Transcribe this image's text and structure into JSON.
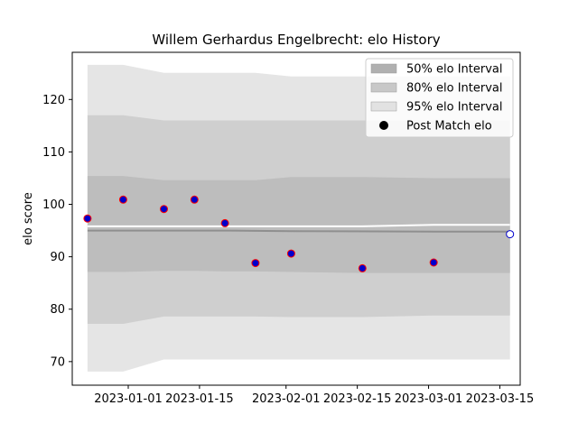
{
  "chart_data": {
    "type": "area",
    "title": "Willem Gerhardus Engelbrecht: elo History",
    "xlabel": "",
    "ylabel": "elo score",
    "xlim": [
      "2022-12-21",
      "2023-03-19"
    ],
    "ylim": [
      65.5,
      129
    ],
    "grid": false,
    "legend_position": "top-right",
    "x_ticks": [
      "2023-01-01",
      "2023-01-15",
      "2023-02-01",
      "2023-02-15",
      "2023-03-01",
      "2023-03-15"
    ],
    "y_ticks": [
      70,
      80,
      90,
      100,
      110,
      120
    ],
    "x": [
      "2022-12-24",
      "2022-12-31",
      "2023-01-08",
      "2023-01-14",
      "2023-01-20",
      "2023-01-26",
      "2023-02-02",
      "2023-02-16",
      "2023-03-02",
      "2023-03-17"
    ],
    "bands": [
      {
        "name": "95% elo Interval",
        "color": "#e5e5e5",
        "upper": [
          126.6,
          126.6,
          125.1,
          125.1,
          125.1,
          125.1,
          124.4,
          124.4,
          124.4,
          124.4
        ],
        "lower": [
          68.1,
          68.1,
          70.4,
          70.4,
          70.4,
          70.4,
          70.4,
          70.4,
          70.4,
          70.4
        ]
      },
      {
        "name": "80% elo Interval",
        "color": "#cfcfcf",
        "upper": [
          117.0,
          117.0,
          116.0,
          116.0,
          116.0,
          116.0,
          116.0,
          116.0,
          116.0,
          116.0
        ],
        "lower": [
          77.2,
          77.2,
          78.6,
          78.6,
          78.6,
          78.6,
          78.5,
          78.5,
          78.8,
          78.8
        ]
      },
      {
        "name": "50% elo Interval",
        "color": "#bdbdbd",
        "upper": [
          105.4,
          105.4,
          104.6,
          104.6,
          104.6,
          104.6,
          105.2,
          105.2,
          105.0,
          105.0
        ],
        "lower": [
          87.1,
          87.1,
          87.3,
          87.3,
          87.2,
          87.2,
          87.1,
          86.9,
          86.9,
          86.9
        ]
      }
    ],
    "lines": [
      {
        "role": "mean",
        "color": "#8f8f8f",
        "x": [
          "2022-12-24",
          "2023-01-20",
          "2023-02-02",
          "2023-03-02",
          "2023-03-17"
        ],
        "y": [
          95.0,
          95.0,
          94.9,
          94.8,
          94.8
        ]
      },
      {
        "role": "upper-edge",
        "color": "#ffffff",
        "x": [
          "2022-12-24",
          "2023-01-20",
          "2023-02-16",
          "2023-03-02",
          "2023-03-17"
        ],
        "y": [
          95.8,
          95.8,
          95.8,
          96.1,
          96.1
        ]
      }
    ],
    "series": [
      {
        "name": "Post Match elo",
        "marker_fill": "#0000cc",
        "marker_edge": "#ff0000",
        "points": [
          {
            "x": "2022-12-24",
            "y": 97.3
          },
          {
            "x": "2022-12-31",
            "y": 100.9
          },
          {
            "x": "2023-01-08",
            "y": 99.1
          },
          {
            "x": "2023-01-14",
            "y": 100.9
          },
          {
            "x": "2023-01-20",
            "y": 96.4
          },
          {
            "x": "2023-01-26",
            "y": 88.8
          },
          {
            "x": "2023-02-02",
            "y": 90.6
          },
          {
            "x": "2023-02-16",
            "y": 87.8
          },
          {
            "x": "2023-03-02",
            "y": 88.9
          }
        ]
      },
      {
        "name": "",
        "marker_fill": "#ffffff",
        "marker_edge": "#0000cc",
        "points": [
          {
            "x": "2023-03-17",
            "y": 94.3
          }
        ]
      }
    ],
    "legend": [
      {
        "label": "50% elo Interval",
        "kind": "patch",
        "color": "#b0b0b0"
      },
      {
        "label": "80% elo Interval",
        "kind": "patch",
        "color": "#c8c8c8"
      },
      {
        "label": "95% elo Interval",
        "kind": "patch",
        "color": "#e2e2e2"
      },
      {
        "label": "Post Match elo",
        "kind": "marker",
        "color": "#000000"
      }
    ]
  }
}
